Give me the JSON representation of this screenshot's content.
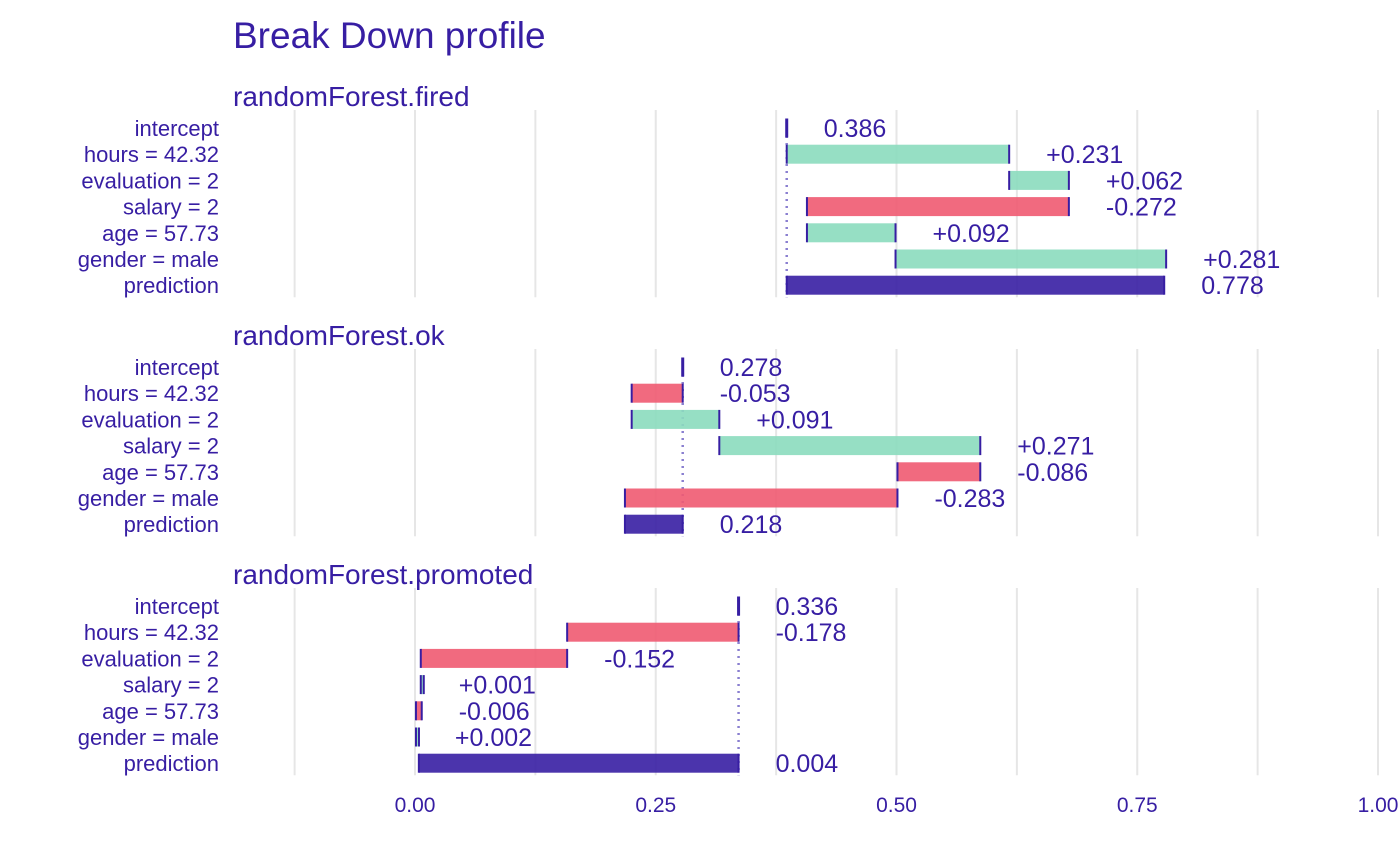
{
  "chart_data": {
    "type": "bar",
    "subtype": "break-down-waterfall",
    "title": "Break Down profile",
    "xlim": [
      -0.25,
      1.0
    ],
    "x_ticks": [
      0.0,
      0.25,
      0.5,
      0.75,
      1.0
    ],
    "x_tick_labels": [
      "0.00",
      "0.25",
      "0.50",
      "0.75",
      "1.00"
    ],
    "grid": true,
    "colors": {
      "text": "#371ea3",
      "positive": "#8bdcbe",
      "negative": "#f05a71",
      "prediction": "#371ea3",
      "grid": "#e6e6e6",
      "intercept_line": "#8a7fd0"
    },
    "panels": [
      {
        "name": "randomForest.fired",
        "rows": [
          {
            "label": "intercept",
            "value": 0.386,
            "display": "0.386",
            "kind": "intercept"
          },
          {
            "label": "hours = 42.32",
            "value": 0.231,
            "display": "+0.231",
            "kind": "positive"
          },
          {
            "label": "evaluation = 2",
            "value": 0.062,
            "display": "+0.062",
            "kind": "positive"
          },
          {
            "label": "salary = 2",
            "value": -0.272,
            "display": "-0.272",
            "kind": "negative"
          },
          {
            "label": "age = 57.73",
            "value": 0.092,
            "display": "+0.092",
            "kind": "positive"
          },
          {
            "label": "gender = male",
            "value": 0.281,
            "display": "+0.281",
            "kind": "positive"
          },
          {
            "label": "prediction",
            "value": 0.778,
            "display": "0.778",
            "kind": "prediction"
          }
        ]
      },
      {
        "name": "randomForest.ok",
        "rows": [
          {
            "label": "intercept",
            "value": 0.278,
            "display": "0.278",
            "kind": "intercept"
          },
          {
            "label": "hours = 42.32",
            "value": -0.053,
            "display": "-0.053",
            "kind": "negative"
          },
          {
            "label": "evaluation = 2",
            "value": 0.091,
            "display": "+0.091",
            "kind": "positive"
          },
          {
            "label": "salary = 2",
            "value": 0.271,
            "display": "+0.271",
            "kind": "positive"
          },
          {
            "label": "age = 57.73",
            "value": -0.086,
            "display": "-0.086",
            "kind": "negative"
          },
          {
            "label": "gender = male",
            "value": -0.283,
            "display": "-0.283",
            "kind": "negative"
          },
          {
            "label": "prediction",
            "value": 0.218,
            "display": "0.218",
            "kind": "prediction"
          }
        ]
      },
      {
        "name": "randomForest.promoted",
        "rows": [
          {
            "label": "intercept",
            "value": 0.336,
            "display": "0.336",
            "kind": "intercept"
          },
          {
            "label": "hours = 42.32",
            "value": -0.178,
            "display": "-0.178",
            "kind": "negative"
          },
          {
            "label": "evaluation = 2",
            "value": -0.152,
            "display": "-0.152",
            "kind": "negative"
          },
          {
            "label": "salary = 2",
            "value": 0.001,
            "display": "+0.001",
            "kind": "positive"
          },
          {
            "label": "age = 57.73",
            "value": -0.006,
            "display": "-0.006",
            "kind": "negative"
          },
          {
            "label": "gender = male",
            "value": 0.002,
            "display": "+0.002",
            "kind": "positive"
          },
          {
            "label": "prediction",
            "value": 0.004,
            "display": "0.004",
            "kind": "prediction"
          }
        ]
      }
    ]
  }
}
